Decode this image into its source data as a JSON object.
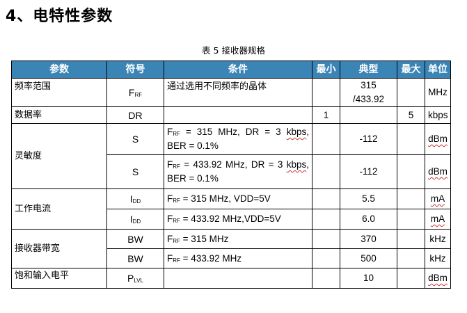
{
  "page": {
    "heading": "4、电特性参数",
    "caption": "表 5  接收器规格"
  },
  "table": {
    "headers": {
      "param": "参数",
      "symbol": "符号",
      "condition": "条件",
      "min": "最小",
      "typ": "典型",
      "max": "最大",
      "unit": "单位"
    },
    "rows": [
      {
        "param": "频率范围",
        "symbol": {
          "main": "F",
          "sub": "RF"
        },
        "condition": "通过选用不同频率的晶体",
        "min": "",
        "typ_line1": "315",
        "typ_line2": "/433.92",
        "max": "",
        "unit": "MHz"
      },
      {
        "param": "数据率",
        "symbol": "DR",
        "condition": "",
        "min": "1",
        "typ": "",
        "max": "5",
        "unit": "kbps"
      },
      {
        "param": "灵敏度",
        "symbol": "S",
        "cond_main": "F",
        "cond_sub": "RF",
        "cond_rest": " = 315 MHz, DR = 3",
        "cond_wavy": "kbps",
        "cond_tail": ", BER = 0.1%",
        "typ": "-112",
        "unit": "dBm"
      },
      {
        "symbol": "S",
        "cond_main": "F",
        "cond_sub": "RF",
        "cond_rest": " = 433.92 MHz, DR = 3",
        "cond_wavy": "kbps",
        "cond_tail": ", BER = 0.1%",
        "typ": "-112",
        "unit": "dBm"
      },
      {
        "param": "工作电流",
        "symbol": {
          "main": "I",
          "sub": "DD"
        },
        "cond_main": "F",
        "cond_sub": "RF",
        "cond_rest": " = 315 MHz, VDD=5V",
        "typ": "5.5",
        "unit": "mA"
      },
      {
        "symbol": {
          "main": "I",
          "sub": "DD"
        },
        "cond_main": "F",
        "cond_sub": "RF",
        "cond_rest": " = 433.92 MHz,VDD=5V",
        "typ": "6.0",
        "unit": "mA"
      },
      {
        "param": "接收器带宽",
        "symbol": "BW",
        "cond_main": "F",
        "cond_sub": "RF",
        "cond_rest": " = 315 MHz",
        "typ": "370",
        "unit": "kHz"
      },
      {
        "symbol": "BW",
        "cond_main": "F",
        "cond_sub": "RF",
        "cond_rest": " = 433.92 MHz",
        "typ": "500",
        "unit": "kHz"
      },
      {
        "param": "饱和输入电平",
        "symbol": {
          "main": "P",
          "sub": "LVL"
        },
        "condition": "",
        "typ": "10",
        "unit": "dBm"
      }
    ]
  },
  "colors": {
    "header_bg": "#3b84b6",
    "header_text": "#ffffff",
    "border": "#000000",
    "spell_underline": "#c83232"
  }
}
